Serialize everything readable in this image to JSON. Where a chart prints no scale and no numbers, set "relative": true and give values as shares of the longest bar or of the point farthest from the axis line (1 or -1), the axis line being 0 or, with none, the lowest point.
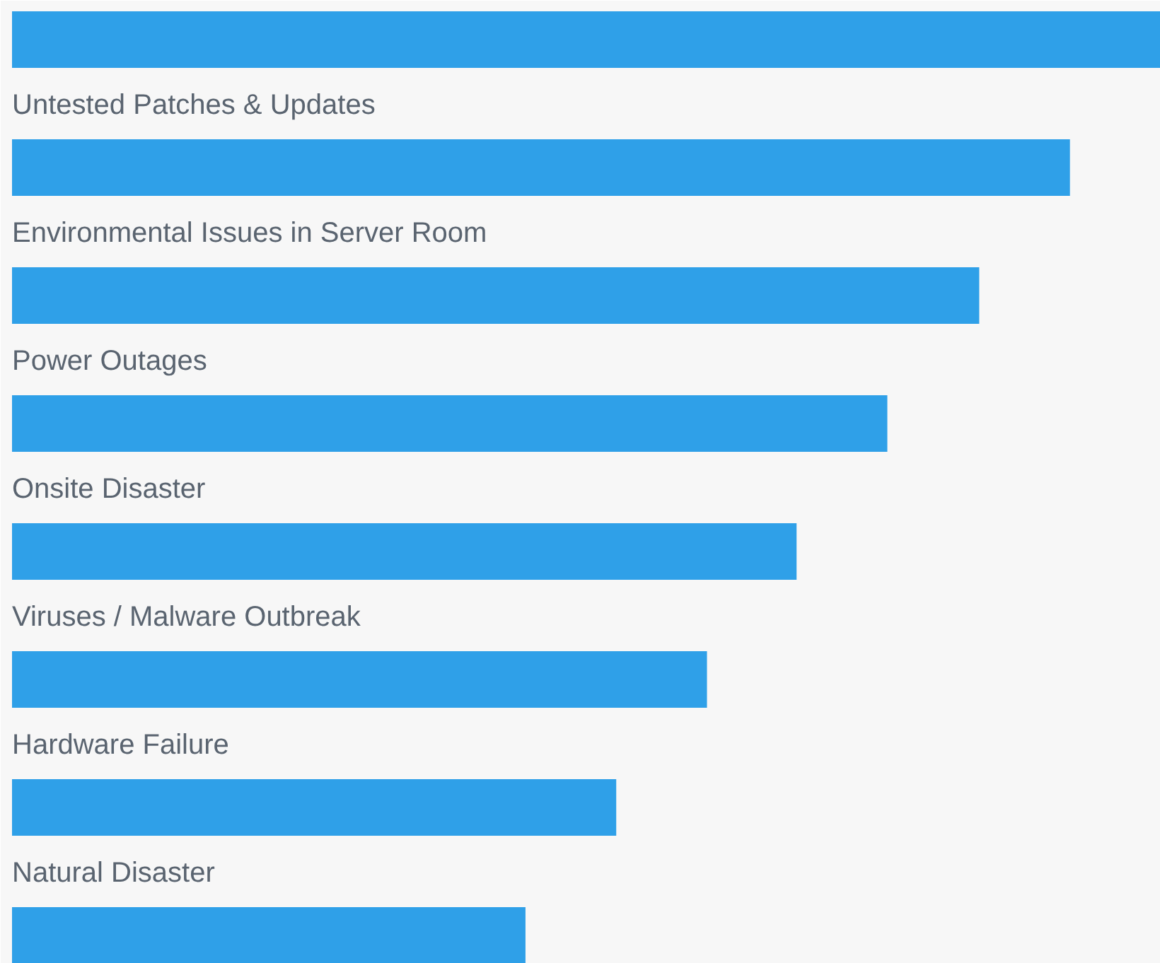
{
  "chart_data": {
    "type": "bar",
    "orientation": "horizontal",
    "relative": true,
    "categories": [
      null,
      "Untested Patches & Updates",
      "Environmental Issues in Server Room",
      "Power Outages",
      "Onsite Disaster",
      "Viruses / Malware Outbreak",
      "Hardware Failure",
      "Natural Disaster"
    ],
    "values": [
      1,
      0.921,
      0.842,
      0.762,
      0.683,
      0.605,
      0.526,
      0.447
    ],
    "color": "#2fa0e8"
  }
}
